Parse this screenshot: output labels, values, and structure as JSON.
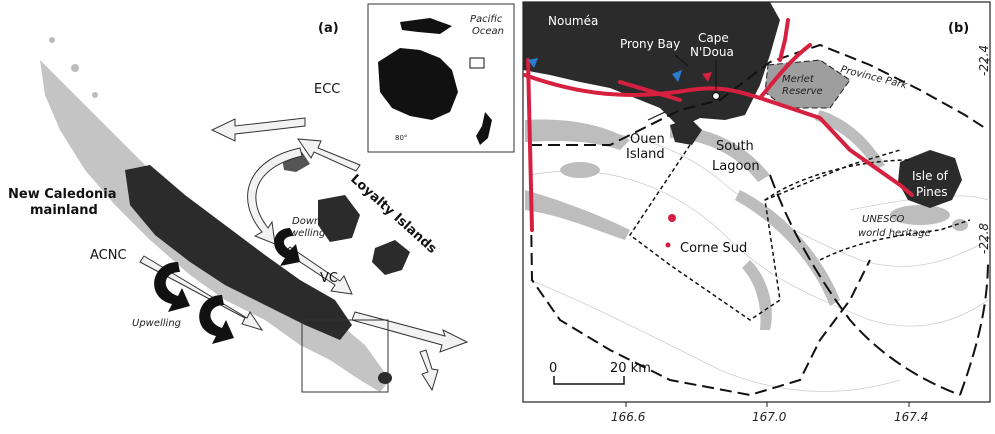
{
  "panel_a": {
    "label": "(a)",
    "inset": {
      "ocean_label_1": "Pacific",
      "ocean_label_2": "Ocean",
      "scale_text": "80°"
    },
    "currents": {
      "ecc": "ECC",
      "vc": "VC",
      "acnc": "ACNC"
    },
    "places": {
      "mainland_1": "New Caledonia",
      "mainland_2": "mainland",
      "loyalty": "Loyalty Islands"
    },
    "processes": {
      "downwelling_1": "Down-",
      "downwelling_2": "welling",
      "upwelling": "Upwelling"
    }
  },
  "panel_b": {
    "label": "(b)",
    "places": {
      "noumea": "Nouméa",
      "prony_bay": "Prony Bay",
      "cape_1": "Cape",
      "cape_2": "N'Doua",
      "merlet_1": "Merlet",
      "merlet_2": "Reserve",
      "province_park": "Province Park",
      "ouen_1": "Ouen",
      "ouen_2": "Island",
      "south_lagoon_1": "South",
      "south_lagoon_2": "Lagoon",
      "isle_1": "Isle of",
      "isle_2": "Pines",
      "unesco_1": "UNESCO",
      "unesco_2": "world heritage",
      "corne_sud": "Corne Sud"
    },
    "scale_bar": {
      "start": "0",
      "end": "20 km"
    },
    "x_ticks": [
      "166.6",
      "167.0",
      "167.4"
    ],
    "y_ticks": [
      "-22.4",
      "-22.8"
    ],
    "colors": {
      "land": "#2b2b2b",
      "reef": "#b8b8b8",
      "route": "#d6203f",
      "marker": "#2a7fd4"
    }
  }
}
